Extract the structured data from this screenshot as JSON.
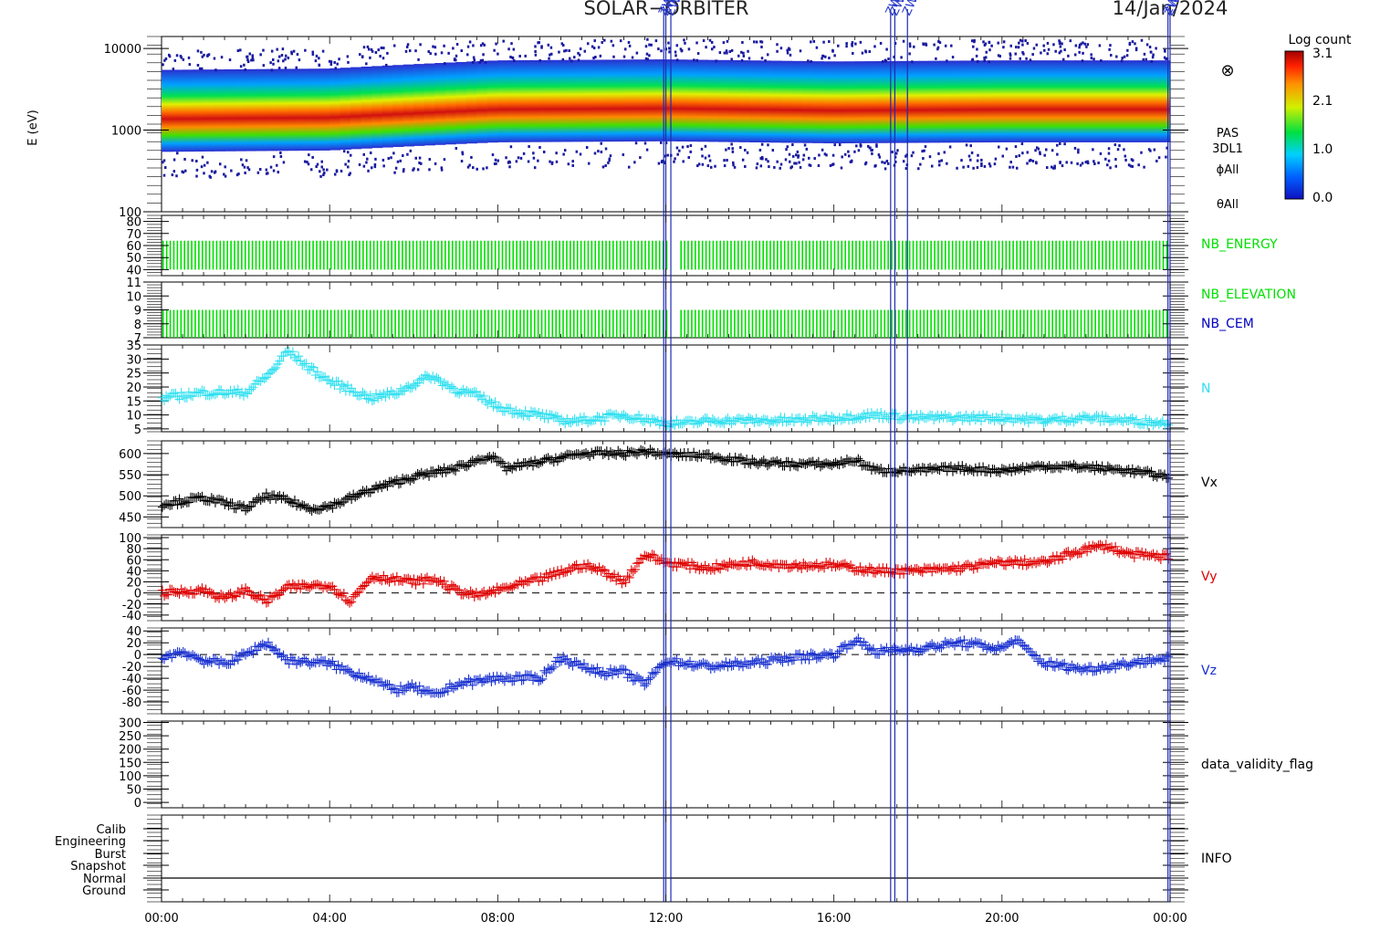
{
  "header": {
    "mission": "SOLAR−ORBITER",
    "date": "14/Jan/2024",
    "event_markers_label": "ZWARN"
  },
  "colorbar": {
    "title": "Log count",
    "ticks": [
      "3.1",
      "2.1",
      "1.0",
      "0.0"
    ]
  },
  "chart_data": [
    {
      "type": "heatmap",
      "name": "energy-spectrogram",
      "ylabel": "E (eV)",
      "yscale": "log",
      "ylim": [
        100,
        14000
      ],
      "yticks": [
        "10000",
        "1000",
        "100"
      ],
      "right_labels": [
        "PAS",
        "3DL1",
        "ϕAll",
        "θAll"
      ],
      "symbol": "⊗",
      "peak_energy_ev_by_hour": [
        [
          0,
          1300
        ],
        [
          4,
          1350
        ],
        [
          8,
          1700
        ],
        [
          12,
          1750
        ],
        [
          16,
          1650
        ],
        [
          20,
          1700
        ],
        [
          24,
          1700
        ]
      ],
      "log_count_range": [
        0.0,
        3.1
      ]
    },
    {
      "type": "bar",
      "name": "NB_ENERGY",
      "yticks": [
        "80",
        "70",
        "60",
        "50",
        "40"
      ],
      "ylim": [
        35,
        85
      ],
      "value_range": [
        40,
        64
      ],
      "series_label": "NB_ENERGY",
      "series_color": "#00e000"
    },
    {
      "type": "bar",
      "name": "NB_ELEVATION_CEM",
      "yticks": [
        "11",
        "10",
        "9",
        "8",
        "7"
      ],
      "ylim": [
        7,
        11
      ],
      "value_range": [
        7,
        9
      ],
      "series_labels": [
        {
          "label": "NB_ELEVATION",
          "color": "#00e000"
        },
        {
          "label": "NB_CEM",
          "color": "#0000c0"
        }
      ]
    },
    {
      "type": "scatter",
      "name": "N",
      "yticks": [
        "35",
        "30",
        "25",
        "20",
        "15",
        "10",
        "5"
      ],
      "ylim": [
        4,
        35
      ],
      "series_label": "N",
      "color": "#30e0f0",
      "x": [
        0,
        1,
        2,
        2.6,
        3,
        3.5,
        4,
        5,
        5.6,
        6,
        6.4,
        7,
        7.5,
        8,
        8.5,
        9,
        9.5,
        10,
        11,
        12,
        12.5,
        13,
        14,
        15,
        16,
        17,
        18,
        19,
        20,
        21,
        22,
        23,
        24
      ],
      "values": [
        16,
        18,
        18,
        25,
        33,
        27,
        22,
        16,
        18,
        21,
        24,
        19,
        17,
        13,
        11,
        10,
        8,
        8,
        10,
        7,
        7,
        8,
        8,
        8,
        9,
        10,
        9,
        9,
        9,
        8,
        9,
        8,
        7
      ]
    },
    {
      "type": "scatter",
      "name": "Vx",
      "yticks": [
        "600",
        "550",
        "500",
        "450"
      ],
      "ylim": [
        425,
        630
      ],
      "series_label": "Vx",
      "color": "#000000",
      "x": [
        0,
        1,
        2,
        2.5,
        3,
        3.5,
        4,
        5,
        6,
        7,
        7.8,
        8.2,
        9,
        10,
        11,
        11.5,
        12,
        13,
        14,
        15,
        16,
        16.5,
        17,
        18,
        19,
        20,
        21,
        22,
        23,
        24
      ],
      "values": [
        480,
        495,
        470,
        500,
        490,
        470,
        475,
        515,
        545,
        565,
        595,
        565,
        580,
        600,
        600,
        605,
        598,
        595,
        580,
        575,
        575,
        585,
        560,
        560,
        565,
        560,
        570,
        568,
        560,
        545
      ]
    },
    {
      "type": "scatter",
      "name": "Vy",
      "yticks": [
        "100",
        "80",
        "60",
        "40",
        "20",
        "0",
        "-20",
        "-40"
      ],
      "ylim": [
        -50,
        105
      ],
      "zero_line": true,
      "series_label": "Vy",
      "color": "#e00000",
      "x": [
        0,
        1,
        1.5,
        2,
        2.5,
        3,
        4,
        4.5,
        5,
        6,
        6.5,
        7,
        7.5,
        8,
        9,
        10,
        10.5,
        11,
        11.5,
        12,
        13,
        14,
        15,
        16,
        17,
        18,
        19,
        20,
        21,
        22,
        22.5,
        23,
        24
      ],
      "values": [
        0,
        5,
        -10,
        5,
        -15,
        10,
        15,
        -15,
        30,
        20,
        25,
        5,
        -5,
        5,
        25,
        50,
        40,
        20,
        70,
        55,
        45,
        55,
        50,
        50,
        40,
        40,
        45,
        55,
        55,
        80,
        85,
        70,
        65
      ]
    },
    {
      "type": "scatter",
      "name": "Vz",
      "yticks": [
        "40",
        "20",
        "0",
        "-20",
        "-40",
        "-60",
        "-80"
      ],
      "ylim": [
        -100,
        45
      ],
      "zero_line": true,
      "series_label": "Vz",
      "color": "#1830d0",
      "x": [
        0,
        0.5,
        1,
        1.5,
        2,
        2.5,
        3,
        4,
        4.5,
        5,
        5.5,
        6,
        6.5,
        7,
        8,
        9,
        9.5,
        10,
        10.5,
        11,
        11.5,
        12,
        13,
        14,
        15,
        16,
        16.5,
        17,
        18,
        19,
        20,
        20.3,
        21,
        22,
        23,
        24
      ],
      "values": [
        -5,
        5,
        -10,
        -15,
        0,
        20,
        -10,
        -15,
        -30,
        -40,
        -60,
        -55,
        -70,
        -50,
        -40,
        -40,
        -5,
        -20,
        -30,
        -30,
        -50,
        -10,
        -20,
        -15,
        -5,
        0,
        25,
        5,
        10,
        20,
        10,
        25,
        -15,
        -25,
        -15,
        -5
      ]
    },
    {
      "type": "scatter",
      "name": "data_validity_flag",
      "yticks": [
        "300",
        "250",
        "200",
        "150",
        "100",
        "50",
        "0"
      ],
      "ylim": [
        -20,
        305
      ],
      "series_label": "data_validity_flag",
      "values": []
    },
    {
      "type": "table",
      "name": "INFO",
      "categories": [
        "Calib",
        "Engineering",
        "Burst",
        "Snapshot",
        "Normal",
        "Ground"
      ],
      "active_mode": "Normal",
      "series_label": "INFO"
    }
  ],
  "x_axis": {
    "ticks": [
      "00:00",
      "04:00",
      "08:00",
      "12:00",
      "16:00",
      "20:00",
      "00:00"
    ],
    "tick_hours": [
      0,
      4,
      8,
      12,
      16,
      20,
      24
    ]
  },
  "event_marker_hours": [
    11.95,
    12.0,
    12.12,
    17.35,
    17.45,
    17.75,
    23.95,
    24.0
  ]
}
